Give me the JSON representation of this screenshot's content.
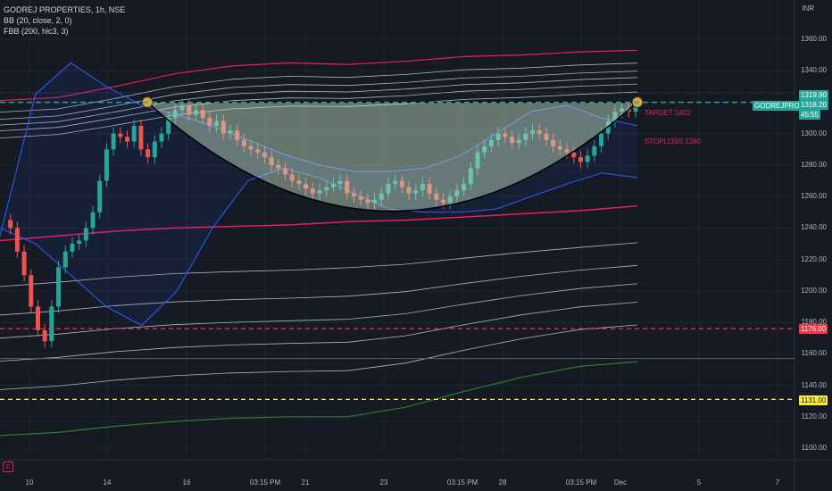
{
  "header": {
    "symbol": "GODREJ PROPERTIES, 1h, NSE",
    "indicator1": "BB (20, close, 2, 0)",
    "indicator2": "FBB (200, hlc3, 3)"
  },
  "axis": {
    "currency": "INR"
  },
  "badges": {
    "symbol_tag": "GODREJPROP",
    "price": "1319.90",
    "price_sub": "1318.20",
    "countdown": "45:55",
    "level_red": "1176.00",
    "level_yellow": "1131.00"
  },
  "annotations": {
    "target": "TARGET 1402",
    "stoploss": "STOPLOSS 1280"
  },
  "logo": "E",
  "colors": {
    "background": "#161a25",
    "bull": "#26a69a",
    "bear": "#ef5350",
    "bb_band": "#2962ff",
    "fbb_outer": "#e91e63",
    "fbb_basis": "#2e7d32",
    "fbb_inner": "#b2b5be",
    "red_level": "#f23645",
    "yellow_level": "#ffeb3b",
    "pattern_fill": "#c8e6c9"
  },
  "chart_data": {
    "type": "candlestick",
    "x_tick_labels": [
      "10",
      "14",
      "16",
      "03:15 PM",
      "21",
      "23",
      "03:15 PM",
      "28",
      "03:15 PM",
      "Dec",
      "5",
      "7"
    ],
    "y_tick_labels": [
      1100,
      1120,
      1140,
      1160,
      1180,
      1200,
      1220,
      1240,
      1260,
      1280,
      1300,
      1320,
      1340,
      1360
    ],
    "ylim": [
      1090,
      1378
    ],
    "levels": [
      {
        "value": 1319.9,
        "label": "1319.90"
      },
      {
        "value": 1176,
        "label": "1176.00"
      },
      {
        "value": 1131,
        "label": "1131.00"
      }
    ],
    "pattern": "cup",
    "cup_rim_price": 1320,
    "cup_bottom_price": 1250,
    "fbb_series": {
      "outer_upper": [
        1321,
        1323,
        1330,
        1338,
        1343,
        1345,
        1344,
        1346,
        1349,
        1350,
        1352,
        1353
      ],
      "basis": [
        1108,
        1110,
        1114,
        1117,
        1119,
        1120,
        1120,
        1126,
        1136,
        1145,
        1152,
        1155
      ],
      "outer_lower": [
        1232,
        1235,
        1238,
        1240,
        1241,
        1242,
        1244,
        1245,
        1247,
        1249,
        1251,
        1254
      ]
    }
  }
}
